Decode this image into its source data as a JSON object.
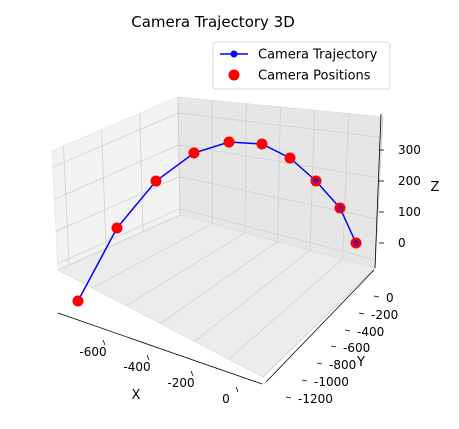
{
  "chart_data": {
    "type": "line",
    "title": "Camera Trajectory 3D",
    "xlabel": "X",
    "ylabel": "Y",
    "zlabel": "Z",
    "x_ticks": [
      -600,
      -400,
      -200,
      0
    ],
    "y_ticks": [
      0,
      -200,
      -400,
      -600,
      -800,
      -1000,
      -1200
    ],
    "z_ticks": [
      0,
      100,
      200,
      300
    ],
    "legend": {
      "placement": "top-right",
      "entries": [
        {
          "label": "Camera Trajectory",
          "color": "#0000ff",
          "marker": "circle-line"
        },
        {
          "label": "Camera Positions",
          "color": "#ff0000",
          "marker": "circle"
        }
      ]
    },
    "grid": true,
    "series": [
      {
        "name": "Camera Trajectory",
        "color": "#0000ff",
        "points": [
          {
            "x": -750,
            "y": -1200,
            "z": 0
          },
          {
            "x": -640,
            "y": -1050,
            "z": 110
          },
          {
            "x": -540,
            "y": -900,
            "z": 190
          },
          {
            "x": -440,
            "y": -750,
            "z": 250
          },
          {
            "x": -340,
            "y": -600,
            "z": 285
          },
          {
            "x": -250,
            "y": -450,
            "z": 280
          },
          {
            "x": -170,
            "y": -300,
            "z": 245
          },
          {
            "x": -100,
            "y": -150,
            "z": 180
          },
          {
            "x": -40,
            "y": -50,
            "z": 100
          },
          {
            "x": 0,
            "y": 0,
            "z": 0
          }
        ]
      }
    ]
  }
}
